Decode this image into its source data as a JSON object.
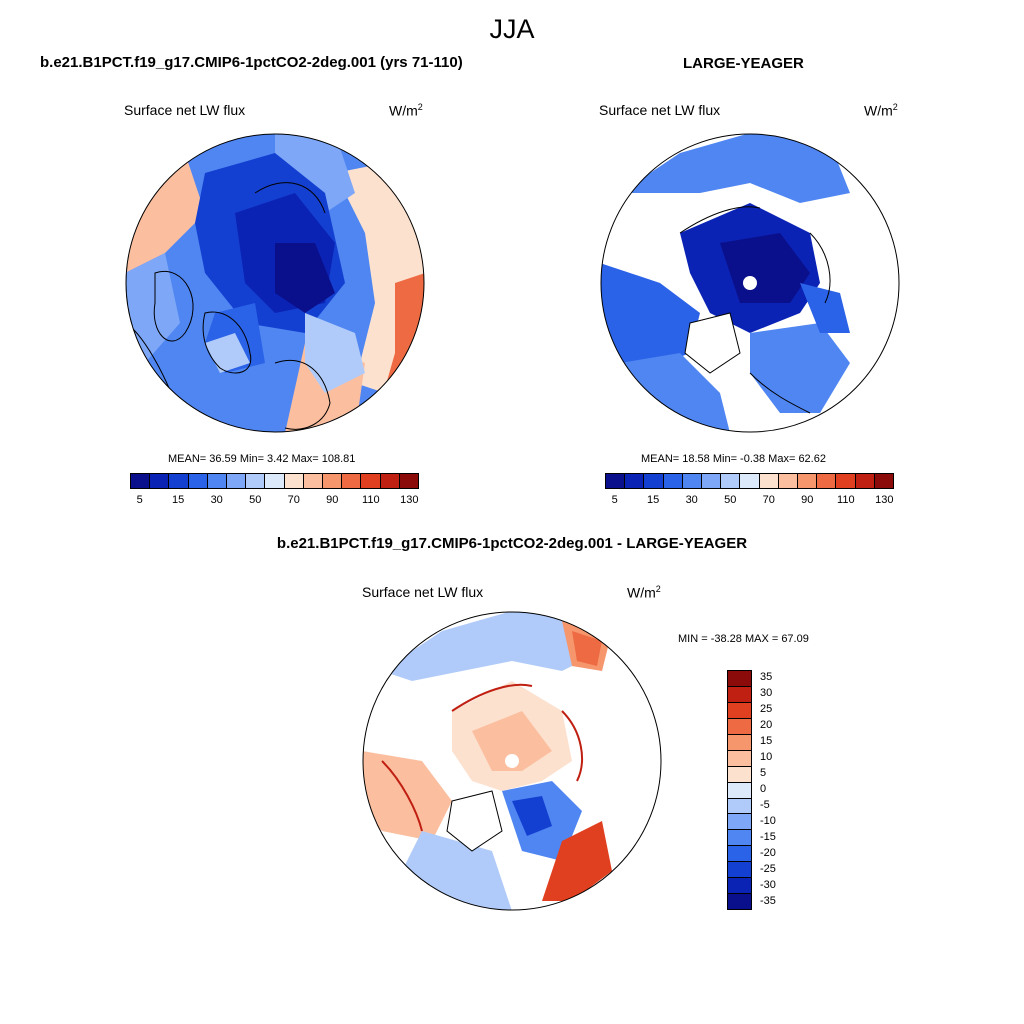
{
  "title": "JJA",
  "colormaps": {
    "abs": [
      "#0a0f8c",
      "#0a23b4",
      "#1440d2",
      "#2a63e8",
      "#4f86f2",
      "#7ea8f7",
      "#b0cbf9",
      "#dce9fb",
      "#fde1cf",
      "#fbbfa0",
      "#f6966d",
      "#ee6a43",
      "#e0401f",
      "#c02012",
      "#8b0a0a"
    ],
    "diff": [
      "#0a0f8c",
      "#0a23b4",
      "#1440d2",
      "#2a63e8",
      "#4f86f2",
      "#7ea8f7",
      "#b0cbf9",
      "#dce9fb",
      "#fde1cf",
      "#fbbfa0",
      "#f6966d",
      "#ee6a43",
      "#e0401f",
      "#c02012",
      "#8b0a0a"
    ]
  },
  "panels": [
    {
      "title": "b.e21.B1PCT.f19_g17.CMIP6-1pctCO2-2deg.001 (yrs 71-110)",
      "label_left": "Surface net LW flux",
      "units": "W/m",
      "units_sup": "2",
      "stats": "MEAN=  36.59  Min=   3.42  Max= 108.81",
      "colorbar_ticks": [
        "5",
        "15",
        "30",
        "50",
        "70",
        "90",
        "110",
        "130"
      ]
    },
    {
      "title": "LARGE-YEAGER",
      "label_left": "Surface net LW flux",
      "units": "W/m",
      "units_sup": "2",
      "stats": "MEAN=  18.58  Min=  -0.38  Max=  62.62",
      "colorbar_ticks": [
        "5",
        "15",
        "30",
        "50",
        "70",
        "90",
        "110",
        "130"
      ]
    },
    {
      "title": "b.e21.B1PCT.f19_g17.CMIP6-1pctCO2-2deg.001 - LARGE-YEAGER",
      "label_left": "Surface net LW flux",
      "units": "W/m",
      "units_sup": "2",
      "stats": "MIN = -38.28 MAX =  67.09",
      "colorbar_ticks": [
        "35",
        "30",
        "25",
        "20",
        "15",
        "10",
        "5",
        "0",
        "-5",
        "-10",
        "-15",
        "-20",
        "-25",
        "-30",
        "-35"
      ]
    }
  ]
}
